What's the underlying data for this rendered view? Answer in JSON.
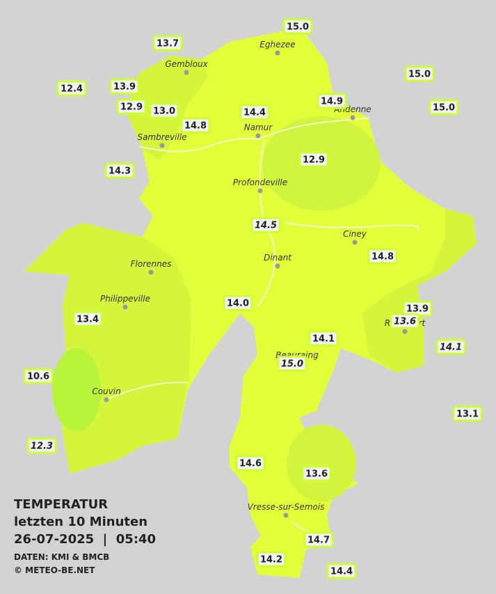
{
  "legend": {
    "title": "TEMPERATUR",
    "subtitle": "letzten 10 Minuten",
    "datetime": "26-07-2025  |  05:40",
    "source": "DATEN: KMI & BMCB",
    "copyright": "© METEO-BE.NET"
  },
  "towns": [
    "Eghezee",
    "Gembloux",
    "Andenne",
    "Namur",
    "Sambreville",
    "Profondeville",
    "Ciney",
    "Dinant",
    "Florennes",
    "Philippeville",
    "Rochefort",
    "Beauraing",
    "Couvin",
    "Vresse-sur-Semois"
  ],
  "stations": [
    {
      "value": "15.0"
    },
    {
      "value": "13.7"
    },
    {
      "value": "15.0"
    },
    {
      "value": "12.4"
    },
    {
      "value": "13.9"
    },
    {
      "value": "14.9"
    },
    {
      "value": "12.9"
    },
    {
      "value": "13.0"
    },
    {
      "value": "14.4"
    },
    {
      "value": "15.0"
    },
    {
      "value": "14.8"
    },
    {
      "value": "14.3"
    },
    {
      "value": "12.9"
    },
    {
      "value": "14.5",
      "italic": true
    },
    {
      "value": "14.8"
    },
    {
      "value": "14.0"
    },
    {
      "value": "13.9"
    },
    {
      "value": "13.4"
    },
    {
      "value": "13.6",
      "italic": true
    },
    {
      "value": "14.1"
    },
    {
      "value": "14.1",
      "italic": true
    },
    {
      "value": "15.0",
      "italic": true
    },
    {
      "value": "10.6"
    },
    {
      "value": "13.1"
    },
    {
      "value": "12.3",
      "italic": true
    },
    {
      "value": "14.6"
    },
    {
      "value": "13.6"
    },
    {
      "value": "14.7"
    },
    {
      "value": "14.2"
    },
    {
      "value": "14.4"
    }
  ]
}
